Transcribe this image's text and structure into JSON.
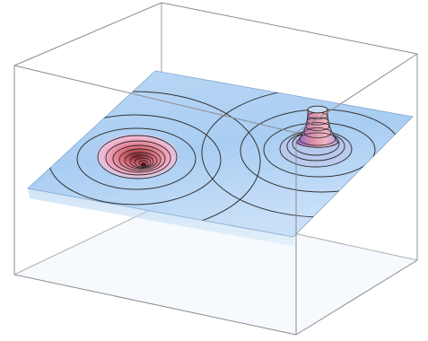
{
  "figure": {
    "kind": "3d-surface-plot",
    "features": [
      {
        "name": "well",
        "shape": "funnel",
        "direction": "down"
      },
      {
        "name": "peak",
        "shape": "cone",
        "direction": "up"
      }
    ],
    "colors": {
      "background": "#ffffff",
      "plane": "#a9cdf2",
      "plane_light": "#cfe3f8",
      "contour": "#2a2a2a",
      "box_edge": "#8c8c8c",
      "surface_red": "#e06a78",
      "surface_purple": "#b898d8"
    }
  }
}
